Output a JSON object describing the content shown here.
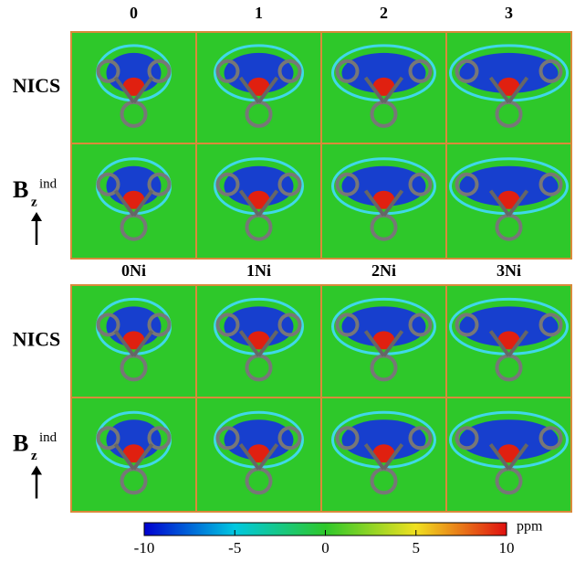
{
  "top_block": {
    "column_labels": [
      "0",
      "1",
      "2",
      "3"
    ],
    "row_labels": [
      "NICS",
      {
        "base": "B",
        "sub": "z",
        "sup": "ind"
      }
    ]
  },
  "bottom_block": {
    "column_labels": [
      "0Ni",
      "1Ni",
      "2Ni",
      "3Ni"
    ],
    "row_labels": [
      "NICS",
      {
        "base": "B",
        "sub": "z",
        "sup": "ind"
      }
    ]
  },
  "colorbar": {
    "unit": "ppm",
    "range": [
      -10,
      10
    ],
    "ticks": [
      -10,
      -5,
      0,
      5,
      10
    ]
  }
}
